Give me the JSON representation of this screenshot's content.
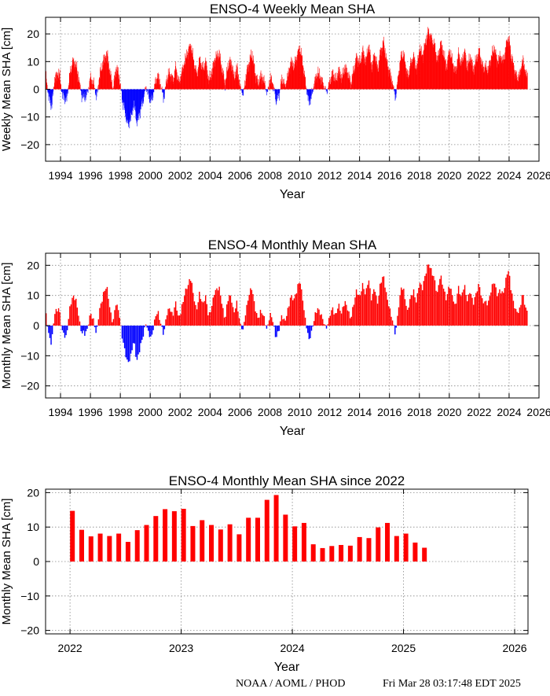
{
  "footer": {
    "credit": "NOAA / AOML / PHOD",
    "timestamp": "Fri Mar 28 03:17:48 EDT 2025"
  },
  "colors": {
    "positive": "#ff0000",
    "negative": "#0000ff",
    "grid": "#888888"
  },
  "chart_data": [
    {
      "id": "weekly",
      "type": "bar",
      "title": "ENSO-4 Weekly Mean SHA",
      "xlabel": "Year",
      "ylabel": "Weekly Mean SHA [cm]",
      "xlim": [
        1993,
        2026
      ],
      "ylim": [
        -26,
        26
      ],
      "xticks": [
        1994,
        1996,
        1998,
        2000,
        2002,
        2004,
        2006,
        2008,
        2010,
        2012,
        2014,
        2016,
        2018,
        2020,
        2022,
        2024,
        2026
      ],
      "xtick_labels": [
        "1994",
        "1996",
        "1998",
        "2000",
        "2002",
        "2004",
        "2006",
        "2008",
        "2010",
        "2012",
        "2014",
        "2016",
        "2018",
        "2020",
        "2022",
        "2024",
        "2026"
      ],
      "yticks": [
        -20,
        -10,
        0,
        10,
        20
      ],
      "ytick_labels": [
        "−20",
        "−10",
        "0",
        "10",
        "20"
      ],
      "grid": true,
      "resolution": "weekly",
      "x_start": 1993.0,
      "x_end": 2025.22,
      "anchors": [
        [
          1993.0,
          5
        ],
        [
          1993.2,
          -3
        ],
        [
          1993.4,
          -6
        ],
        [
          1993.6,
          4
        ],
        [
          1993.9,
          6
        ],
        [
          1994.1,
          -2
        ],
        [
          1994.4,
          -4
        ],
        [
          1994.6,
          5
        ],
        [
          1994.8,
          10
        ],
        [
          1995.0,
          9
        ],
        [
          1995.2,
          4
        ],
        [
          1995.4,
          -2
        ],
        [
          1995.6,
          -3
        ],
        [
          1995.8,
          -1
        ],
        [
          1996.0,
          4
        ],
        [
          1996.2,
          2
        ],
        [
          1996.4,
          -3
        ],
        [
          1996.6,
          5
        ],
        [
          1996.9,
          11
        ],
        [
          1997.1,
          13
        ],
        [
          1997.3,
          6
        ],
        [
          1997.5,
          0
        ],
        [
          1997.7,
          8
        ],
        [
          1997.9,
          5
        ],
        [
          1998.1,
          -3
        ],
        [
          1998.3,
          -8
        ],
        [
          1998.5,
          -13
        ],
        [
          1998.7,
          -10
        ],
        [
          1998.9,
          -5
        ],
        [
          1999.1,
          -12
        ],
        [
          1999.3,
          -8
        ],
        [
          1999.5,
          -4
        ],
        [
          1999.7,
          1
        ],
        [
          1999.9,
          -3
        ],
        [
          2000.1,
          -4
        ],
        [
          2000.3,
          2
        ],
        [
          2000.5,
          5
        ],
        [
          2000.7,
          1
        ],
        [
          2000.9,
          -3
        ],
        [
          2001.1,
          4
        ],
        [
          2001.3,
          6
        ],
        [
          2001.5,
          3
        ],
        [
          2001.7,
          8
        ],
        [
          2001.9,
          2
        ],
        [
          2002.1,
          6
        ],
        [
          2002.4,
          12
        ],
        [
          2002.7,
          16
        ],
        [
          2002.9,
          10
        ],
        [
          2003.1,
          5
        ],
        [
          2003.3,
          11
        ],
        [
          2003.5,
          7
        ],
        [
          2003.7,
          10
        ],
        [
          2003.9,
          3
        ],
        [
          2004.1,
          6
        ],
        [
          2004.3,
          11
        ],
        [
          2004.6,
          13
        ],
        [
          2004.8,
          7
        ],
        [
          2005.0,
          2
        ],
        [
          2005.2,
          9
        ],
        [
          2005.4,
          10
        ],
        [
          2005.6,
          4
        ],
        [
          2005.8,
          8
        ],
        [
          2006.0,
          1
        ],
        [
          2006.2,
          -2
        ],
        [
          2006.4,
          5
        ],
        [
          2006.6,
          10
        ],
        [
          2006.8,
          13
        ],
        [
          2007.0,
          6
        ],
        [
          2007.2,
          2
        ],
        [
          2007.4,
          5
        ],
        [
          2007.6,
          3
        ],
        [
          2007.8,
          -2
        ],
        [
          2008.0,
          4
        ],
        [
          2008.2,
          2
        ],
        [
          2008.4,
          -4
        ],
        [
          2008.6,
          -2
        ],
        [
          2008.8,
          4
        ],
        [
          2009.0,
          1
        ],
        [
          2009.2,
          5
        ],
        [
          2009.4,
          10
        ],
        [
          2009.6,
          8
        ],
        [
          2009.8,
          12
        ],
        [
          2010.0,
          15
        ],
        [
          2010.2,
          9
        ],
        [
          2010.4,
          1
        ],
        [
          2010.6,
          -5
        ],
        [
          2010.8,
          -2
        ],
        [
          2011.0,
          3
        ],
        [
          2011.2,
          6
        ],
        [
          2011.4,
          4
        ],
        [
          2011.6,
          1
        ],
        [
          2011.8,
          -1
        ],
        [
          2012.0,
          3
        ],
        [
          2012.2,
          6
        ],
        [
          2012.4,
          3
        ],
        [
          2012.6,
          7
        ],
        [
          2012.8,
          4
        ],
        [
          2013.0,
          8
        ],
        [
          2013.2,
          6
        ],
        [
          2013.4,
          2
        ],
        [
          2013.6,
          7
        ],
        [
          2013.8,
          12
        ],
        [
          2014.0,
          9
        ],
        [
          2014.2,
          14
        ],
        [
          2014.4,
          10
        ],
        [
          2014.6,
          16
        ],
        [
          2014.8,
          8
        ],
        [
          2015.0,
          13
        ],
        [
          2015.2,
          7
        ],
        [
          2015.4,
          14
        ],
        [
          2015.6,
          17
        ],
        [
          2015.8,
          10
        ],
        [
          2016.0,
          6
        ],
        [
          2016.2,
          2
        ],
        [
          2016.4,
          -3
        ],
        [
          2016.6,
          6
        ],
        [
          2016.8,
          13
        ],
        [
          2017.0,
          11
        ],
        [
          2017.2,
          4
        ],
        [
          2017.4,
          9
        ],
        [
          2017.6,
          12
        ],
        [
          2017.8,
          7
        ],
        [
          2018.0,
          15
        ],
        [
          2018.2,
          12
        ],
        [
          2018.4,
          17
        ],
        [
          2018.6,
          21
        ],
        [
          2018.8,
          18
        ],
        [
          2019.0,
          16
        ],
        [
          2019.2,
          10
        ],
        [
          2019.4,
          17
        ],
        [
          2019.6,
          13
        ],
        [
          2019.8,
          8
        ],
        [
          2020.0,
          14
        ],
        [
          2020.2,
          10
        ],
        [
          2020.4,
          6
        ],
        [
          2020.6,
          13
        ],
        [
          2020.8,
          9
        ],
        [
          2021.0,
          14
        ],
        [
          2021.2,
          8
        ],
        [
          2021.4,
          12
        ],
        [
          2021.6,
          7
        ],
        [
          2021.8,
          11
        ],
        [
          2022.0,
          14
        ],
        [
          2022.2,
          8
        ],
        [
          2022.4,
          8
        ],
        [
          2022.6,
          7
        ],
        [
          2022.8,
          12
        ],
        [
          2023.0,
          15
        ],
        [
          2023.2,
          10
        ],
        [
          2023.4,
          12
        ],
        [
          2023.6,
          10
        ],
        [
          2023.8,
          16
        ],
        [
          2023.95,
          19
        ],
        [
          2024.1,
          13
        ],
        [
          2024.3,
          8
        ],
        [
          2024.5,
          4
        ],
        [
          2024.7,
          5
        ],
        [
          2024.9,
          11
        ],
        [
          2025.0,
          8
        ],
        [
          2025.1,
          6
        ],
        [
          2025.22,
          4
        ]
      ]
    },
    {
      "id": "monthly",
      "type": "bar",
      "title": "ENSO-4 Monthly Mean SHA",
      "xlabel": "Year",
      "ylabel": "Monthly Mean SHA [cm]",
      "xlim": [
        1993,
        2026
      ],
      "ylim": [
        -24,
        24
      ],
      "xticks": [
        1994,
        1996,
        1998,
        2000,
        2002,
        2004,
        2006,
        2008,
        2010,
        2012,
        2014,
        2016,
        2018,
        2020,
        2022,
        2024,
        2026
      ],
      "xtick_labels": [
        "1994",
        "1996",
        "1998",
        "2000",
        "2002",
        "2004",
        "2006",
        "2008",
        "2010",
        "2012",
        "2014",
        "2016",
        "2018",
        "2020",
        "2022",
        "2024",
        "2026"
      ],
      "yticks": [
        -20,
        -10,
        0,
        10,
        20
      ],
      "ytick_labels": [
        "−20",
        "−10",
        "0",
        "10",
        "20"
      ],
      "grid": true,
      "resolution": "monthly",
      "derived_from": "weekly",
      "x_start": 1993.0,
      "x_end": 2025.22
    },
    {
      "id": "since2022",
      "type": "bar",
      "title": "ENSO-4 Monthly Mean SHA since 2022",
      "xlabel": "Year",
      "ylabel": "Monthly Mean SHA [cm]",
      "xlim": [
        2021.78,
        2026.12
      ],
      "ylim": [
        -21,
        21
      ],
      "xticks": [
        2022,
        2023,
        2024,
        2025,
        2026
      ],
      "xtick_labels": [
        "2022",
        "2023",
        "2024",
        "2025",
        "2026"
      ],
      "yticks": [
        -20,
        -10,
        0,
        10,
        20
      ],
      "ytick_labels": [
        "−20",
        "−10",
        "0",
        "10",
        "20"
      ],
      "grid": true,
      "categories": [
        "2022-01",
        "2022-02",
        "2022-03",
        "2022-04",
        "2022-05",
        "2022-06",
        "2022-07",
        "2022-08",
        "2022-09",
        "2022-10",
        "2022-11",
        "2022-12",
        "2023-01",
        "2023-02",
        "2023-03",
        "2023-04",
        "2023-05",
        "2023-06",
        "2023-07",
        "2023-08",
        "2023-09",
        "2023-10",
        "2023-11",
        "2023-12",
        "2024-01",
        "2024-02",
        "2024-03",
        "2024-04",
        "2024-05",
        "2024-06",
        "2024-07",
        "2024-08",
        "2024-09",
        "2024-10",
        "2024-11",
        "2024-12",
        "2025-01",
        "2025-02",
        "2025-03"
      ],
      "values": [
        14.7,
        9.2,
        7.3,
        8.1,
        7.4,
        8.1,
        5.7,
        9.1,
        10.6,
        13.2,
        15.2,
        14.6,
        15.3,
        10.3,
        12.0,
        10.6,
        9.3,
        10.8,
        7.9,
        12.7,
        12.7,
        17.9,
        19.3,
        13.6,
        10.2,
        11.2,
        5.0,
        3.9,
        4.5,
        4.8,
        4.6,
        7.1,
        6.8,
        9.9,
        11.2,
        7.4,
        8.1,
        5.5,
        4.0
      ]
    }
  ]
}
